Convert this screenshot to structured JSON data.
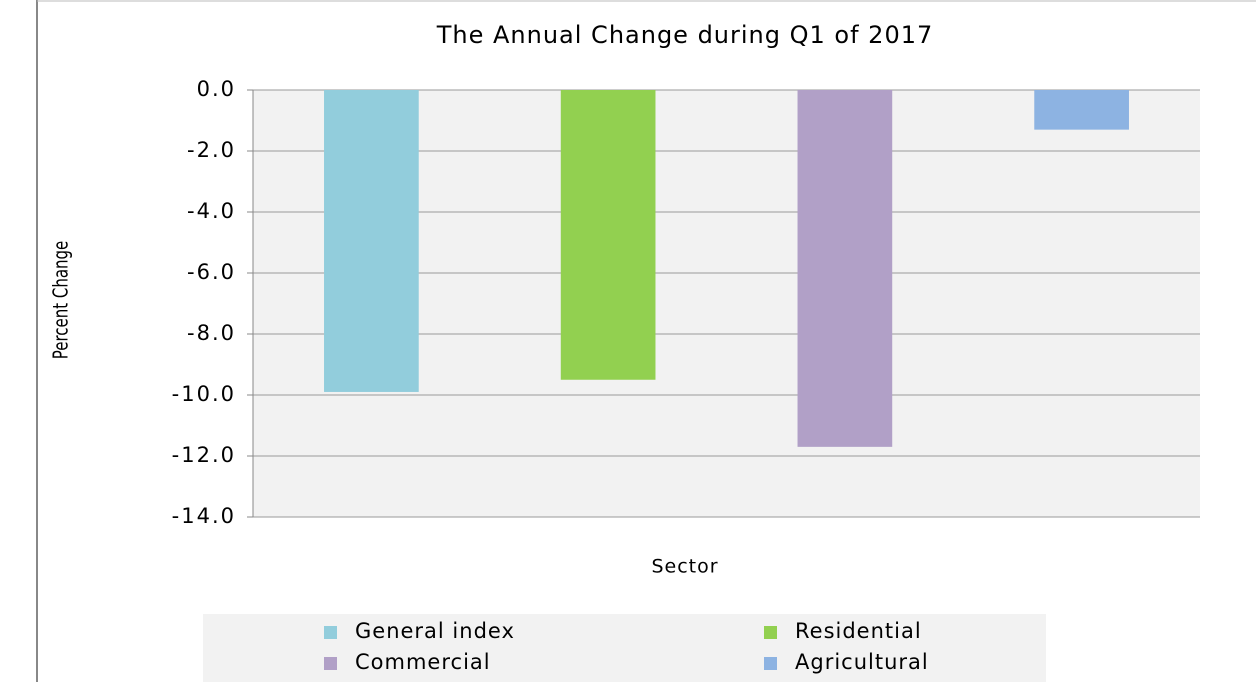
{
  "chart_data": {
    "type": "bar",
    "title": "The Annual Change during Q1 of 2017",
    "xlabel": "Sector",
    "ylabel": "Percent Change",
    "categories": [
      null
    ],
    "series": [
      {
        "name": "General index",
        "color": "#92cddc",
        "values": [
          -9.9
        ]
      },
      {
        "name": "Residential",
        "color": "#92d050",
        "values": [
          -9.5
        ]
      },
      {
        "name": "Commercial",
        "color": "#b1a0c7",
        "values": [
          -11.7
        ]
      },
      {
        "name": "Agricultural",
        "color": "#8db3e2",
        "values": [
          -1.3
        ]
      }
    ],
    "ylim": [
      -14,
      0
    ],
    "yticks": [
      {
        "value": 0,
        "label": "0.0"
      },
      {
        "value": -2,
        "label": "-2.0"
      },
      {
        "value": -4,
        "label": "-4.0"
      },
      {
        "value": -6,
        "label": "-6.0"
      },
      {
        "value": -8,
        "label": "-8.0"
      },
      {
        "value": -10,
        "label": "-10.0"
      },
      {
        "value": -12,
        "label": "-12.0"
      },
      {
        "value": -14,
        "label": "-14.0"
      }
    ],
    "grid": true,
    "legend": "bottom"
  }
}
